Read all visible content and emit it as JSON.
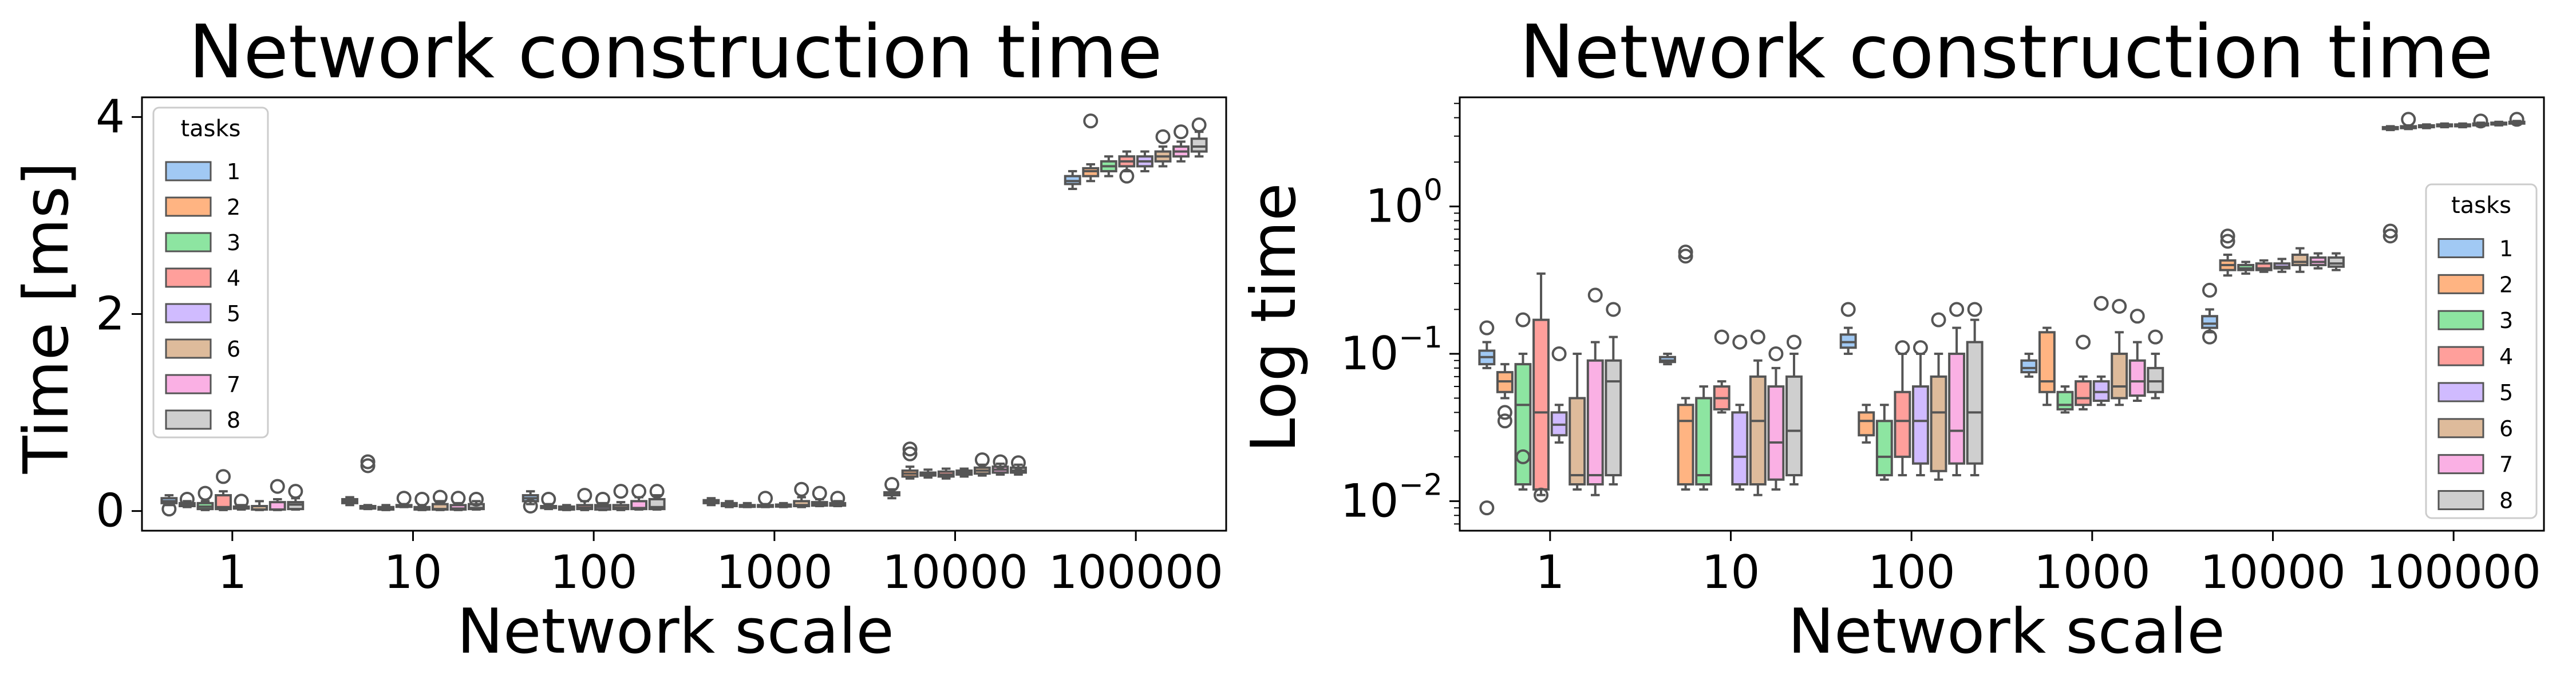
{
  "chart_data": [
    {
      "type": "box",
      "title": "Network construction time",
      "xlabel": "Network scale",
      "ylabel": "Time [ms]",
      "scale": "linear",
      "ylim": [
        -0.2,
        4.2
      ],
      "yticks": [
        0,
        2,
        4
      ],
      "ytick_labels": [
        "0",
        "2",
        "4"
      ],
      "categories": [
        "1",
        "10",
        "100",
        "1000",
        "10000",
        "100000"
      ],
      "legend": {
        "title": "tasks",
        "placement": "upper-left"
      },
      "series": [
        {
          "name": "1",
          "color": "#a1c9f4",
          "boxes": [
            [
              0.06,
              0.08,
              0.1,
              0.13,
              0.16
            ],
            [
              0.06,
              0.08,
              0.1,
              0.12,
              0.14
            ],
            [
              0.07,
              0.1,
              0.13,
              0.16,
              0.2
            ],
            [
              0.06,
              0.08,
              0.09,
              0.11,
              0.13
            ],
            [
              0.13,
              0.16,
              0.17,
              0.19,
              0.22
            ],
            [
              3.27,
              3.32,
              3.35,
              3.4,
              3.45
            ]
          ],
          "outliers": [
            [
              0.02
            ],
            [],
            [
              0.05
            ],
            [],
            [
              0.27
            ],
            []
          ]
        },
        {
          "name": "2",
          "color": "#ffb482",
          "boxes": [
            [
              0.04,
              0.05,
              0.065,
              0.08,
              0.1
            ],
            [
              0.02,
              0.025,
              0.04,
              0.05,
              0.06
            ],
            [
              0.02,
              0.03,
              0.04,
              0.05,
              0.07
            ],
            [
              0.04,
              0.05,
              0.07,
              0.08,
              0.1
            ],
            [
              0.33,
              0.35,
              0.38,
              0.41,
              0.45
            ],
            [
              3.35,
              3.4,
              3.45,
              3.48,
              3.52
            ]
          ],
          "outliers": [
            [
              0.12
            ],
            [
              0.5,
              0.46
            ],
            [
              0.12
            ],
            [],
            [
              0.58,
              0.63
            ],
            [
              3.96
            ]
          ]
        },
        {
          "name": "3",
          "color": "#8de5a1",
          "boxes": [
            [
              0.01,
              0.02,
              0.045,
              0.08,
              0.1
            ],
            [
              0.01,
              0.015,
              0.02,
              0.04,
              0.06
            ],
            [
              0.01,
              0.015,
              0.03,
              0.045,
              0.06
            ],
            [
              0.04,
              0.045,
              0.05,
              0.06,
              0.08
            ],
            [
              0.34,
              0.36,
              0.37,
              0.39,
              0.42
            ],
            [
              3.4,
              3.45,
              3.5,
              3.55,
              3.6
            ]
          ],
          "outliers": [
            [
              0.18
            ],
            [],
            [],
            [],
            [],
            []
          ]
        },
        {
          "name": "4",
          "color": "#ff9f9b",
          "boxes": [
            [
              0.01,
              0.02,
              0.04,
              0.16,
              0.2
            ],
            [
              0.04,
              0.045,
              0.05,
              0.06,
              0.07
            ],
            [
              0.01,
              0.02,
              0.035,
              0.06,
              0.1
            ],
            [
              0.04,
              0.045,
              0.05,
              0.06,
              0.07
            ],
            [
              0.33,
              0.35,
              0.37,
              0.4,
              0.43
            ],
            [
              3.45,
              3.5,
              3.55,
              3.6,
              3.65
            ]
          ],
          "outliers": [
            [
              0.35
            ],
            [
              0.13
            ],
            [
              0.16
            ],
            [
              0.13
            ],
            [],
            [
              3.4
            ]
          ]
        },
        {
          "name": "5",
          "color": "#d0bbff",
          "boxes": [
            [
              0.015,
              0.025,
              0.035,
              0.045,
              0.06
            ],
            [
              0.01,
              0.015,
              0.025,
              0.04,
              0.06
            ],
            [
              0.01,
              0.015,
              0.04,
              0.06,
              0.08
            ],
            [
              0.04,
              0.045,
              0.055,
              0.065,
              0.08
            ],
            [
              0.35,
              0.37,
              0.39,
              0.41,
              0.43
            ],
            [
              3.45,
              3.5,
              3.55,
              3.6,
              3.65
            ]
          ],
          "outliers": [
            [
              0.1
            ],
            [
              0.12
            ],
            [
              0.12
            ],
            [],
            [],
            []
          ]
        },
        {
          "name": "6",
          "color": "#debb9b",
          "boxes": [
            [
              0.01,
              0.015,
              0.015,
              0.05,
              0.1
            ],
            [
              0.01,
              0.015,
              0.02,
              0.07,
              0.1
            ],
            [
              0.01,
              0.02,
              0.035,
              0.06,
              0.09
            ],
            [
              0.04,
              0.05,
              0.06,
              0.1,
              0.14
            ],
            [
              0.36,
              0.38,
              0.41,
              0.44,
              0.47
            ],
            [
              3.5,
              3.55,
              3.6,
              3.65,
              3.7
            ]
          ],
          "outliers": [
            [],
            [
              0.14
            ],
            [
              0.2
            ],
            [
              0.22
            ],
            [
              0.52
            ],
            [
              3.8
            ]
          ]
        },
        {
          "name": "7",
          "color": "#fab0e4",
          "boxes": [
            [
              0.01,
              0.015,
              0.015,
              0.09,
              0.12
            ],
            [
              0.01,
              0.015,
              0.025,
              0.06,
              0.08
            ],
            [
              0.015,
              0.02,
              0.03,
              0.1,
              0.14
            ],
            [
              0.05,
              0.055,
              0.07,
              0.09,
              0.12
            ],
            [
              0.37,
              0.39,
              0.42,
              0.45,
              0.48
            ],
            [
              3.55,
              3.6,
              3.65,
              3.7,
              3.75
            ]
          ],
          "outliers": [
            [
              0.25
            ],
            [
              0.13
            ],
            [
              0.2
            ],
            [
              0.18
            ],
            [
              0.5
            ],
            [
              3.85
            ]
          ]
        },
        {
          "name": "8",
          "color": "#cfcfcf",
          "boxes": [
            [
              0.015,
              0.02,
              0.065,
              0.09,
              0.13
            ],
            [
              0.015,
              0.02,
              0.03,
              0.07,
              0.1
            ],
            [
              0.015,
              0.02,
              0.04,
              0.12,
              0.16
            ],
            [
              0.05,
              0.055,
              0.065,
              0.08,
              0.1
            ],
            [
              0.37,
              0.39,
              0.41,
              0.44,
              0.47
            ],
            [
              3.6,
              3.65,
              3.7,
              3.78,
              3.85
            ]
          ],
          "outliers": [
            [
              0.2
            ],
            [
              0.12
            ],
            [
              0.2
            ],
            [
              0.13
            ],
            [
              0.49
            ],
            [
              3.92
            ]
          ]
        }
      ]
    },
    {
      "type": "box",
      "title": "Network construction time",
      "xlabel": "Network scale",
      "ylabel": "Log time",
      "scale": "log",
      "ylim": [
        0.0063,
        5.5
      ],
      "yticks": [
        0.01,
        0.1,
        1
      ],
      "ytick_labels": [
        [
          "10",
          "−2"
        ],
        [
          "10",
          "−1"
        ],
        [
          "10",
          "0"
        ]
      ],
      "categories": [
        "1",
        "10",
        "100",
        "1000",
        "10000",
        "100000"
      ],
      "legend": {
        "title": "tasks",
        "placement": "right"
      },
      "series": [
        {
          "name": "1",
          "color": "#a1c9f4",
          "boxes": [
            [
              0.08,
              0.085,
              0.095,
              0.105,
              0.12
            ],
            [
              0.085,
              0.088,
              0.09,
              0.095,
              0.1
            ],
            [
              0.1,
              0.11,
              0.12,
              0.135,
              0.15
            ],
            [
              0.07,
              0.075,
              0.08,
              0.09,
              0.1
            ],
            [
              0.14,
              0.15,
              0.16,
              0.18,
              0.2
            ],
            [
              3.3,
              3.35,
              3.4,
              3.45,
              3.5
            ]
          ],
          "outliers": [
            [
              0.15,
              0.009
            ],
            [],
            [
              0.2
            ],
            [],
            [
              0.27,
              0.13
            ],
            [
              0.68,
              0.63
            ]
          ]
        },
        {
          "name": "2",
          "color": "#ffb482",
          "boxes": [
            [
              0.05,
              0.055,
              0.065,
              0.075,
              0.085
            ],
            [
              0.012,
              0.013,
              0.035,
              0.045,
              0.05
            ],
            [
              0.025,
              0.028,
              0.035,
              0.04,
              0.045
            ],
            [
              0.045,
              0.055,
              0.065,
              0.14,
              0.15
            ],
            [
              0.34,
              0.37,
              0.4,
              0.43,
              0.47
            ],
            [
              3.35,
              3.4,
              3.45,
              3.5,
              3.55
            ]
          ],
          "outliers": [
            [
              0.04,
              0.035
            ],
            [
              0.49,
              0.46
            ],
            [],
            [],
            [
              0.63,
              0.58
            ],
            [
              3.9
            ]
          ]
        },
        {
          "name": "3",
          "color": "#8de5a1",
          "boxes": [
            [
              0.012,
              0.013,
              0.045,
              0.085,
              0.1
            ],
            [
              0.012,
              0.013,
              0.015,
              0.05,
              0.06
            ],
            [
              0.014,
              0.015,
              0.02,
              0.035,
              0.045
            ],
            [
              0.04,
              0.042,
              0.045,
              0.055,
              0.06
            ],
            [
              0.35,
              0.37,
              0.38,
              0.4,
              0.42
            ],
            [
              3.4,
              3.45,
              3.5,
              3.55,
              3.6
            ]
          ],
          "outliers": [
            [
              0.17,
              0.02
            ],
            [],
            [],
            [],
            [],
            []
          ]
        },
        {
          "name": "4",
          "color": "#ff9f9b",
          "boxes": [
            [
              0.011,
              0.012,
              0.04,
              0.17,
              0.35
            ],
            [
              0.04,
              0.042,
              0.05,
              0.06,
              0.065
            ],
            [
              0.015,
              0.02,
              0.035,
              0.055,
              0.1
            ],
            [
              0.042,
              0.045,
              0.05,
              0.065,
              0.07
            ],
            [
              0.36,
              0.37,
              0.38,
              0.41,
              0.43
            ],
            [
              3.45,
              3.5,
              3.55,
              3.6,
              3.65
            ]
          ],
          "outliers": [
            [
              0.011
            ],
            [
              0.13
            ],
            [
              0.11
            ],
            [
              0.12
            ],
            [],
            []
          ]
        },
        {
          "name": "5",
          "color": "#d0bbff",
          "boxes": [
            [
              0.025,
              0.028,
              0.033,
              0.04,
              0.045
            ],
            [
              0.012,
              0.013,
              0.02,
              0.04,
              0.045
            ],
            [
              0.015,
              0.018,
              0.035,
              0.06,
              0.1
            ],
            [
              0.045,
              0.048,
              0.055,
              0.065,
              0.07
            ],
            [
              0.36,
              0.38,
              0.39,
              0.41,
              0.44
            ],
            [
              3.45,
              3.5,
              3.55,
              3.6,
              3.65
            ]
          ],
          "outliers": [
            [
              0.1
            ],
            [
              0.12
            ],
            [
              0.11
            ],
            [
              0.22
            ],
            [],
            []
          ]
        },
        {
          "name": "6",
          "color": "#debb9b",
          "boxes": [
            [
              0.012,
              0.013,
              0.015,
              0.05,
              0.1
            ],
            [
              0.011,
              0.013,
              0.035,
              0.07,
              0.09
            ],
            [
              0.014,
              0.016,
              0.04,
              0.07,
              0.1
            ],
            [
              0.045,
              0.05,
              0.06,
              0.1,
              0.14
            ],
            [
              0.36,
              0.4,
              0.42,
              0.47,
              0.52
            ],
            [
              3.5,
              3.55,
              3.6,
              3.65,
              3.7
            ]
          ],
          "outliers": [
            [],
            [
              0.13
            ],
            [
              0.17
            ],
            [
              0.21
            ],
            [],
            [
              3.8
            ]
          ]
        },
        {
          "name": "7",
          "color": "#fab0e4",
          "boxes": [
            [
              0.011,
              0.013,
              0.015,
              0.09,
              0.12
            ],
            [
              0.012,
              0.014,
              0.025,
              0.06,
              0.08
            ],
            [
              0.015,
              0.018,
              0.03,
              0.1,
              0.15
            ],
            [
              0.048,
              0.052,
              0.065,
              0.09,
              0.12
            ],
            [
              0.38,
              0.4,
              0.42,
              0.45,
              0.48
            ],
            [
              3.55,
              3.6,
              3.65,
              3.7,
              3.75
            ]
          ],
          "outliers": [
            [
              0.25
            ],
            [
              0.1
            ],
            [
              0.2
            ],
            [
              0.18
            ],
            [],
            []
          ]
        },
        {
          "name": "8",
          "color": "#cfcfcf",
          "boxes": [
            [
              0.013,
              0.015,
              0.065,
              0.09,
              0.13
            ],
            [
              0.013,
              0.015,
              0.03,
              0.07,
              0.1
            ],
            [
              0.015,
              0.018,
              0.04,
              0.12,
              0.17
            ],
            [
              0.05,
              0.055,
              0.065,
              0.08,
              0.1
            ],
            [
              0.37,
              0.39,
              0.41,
              0.45,
              0.48
            ],
            [
              3.6,
              3.65,
              3.7,
              3.75,
              3.8
            ]
          ],
          "outliers": [
            [
              0.2
            ],
            [
              0.12
            ],
            [
              0.2
            ],
            [
              0.13
            ],
            [],
            [
              3.9
            ]
          ]
        }
      ]
    }
  ]
}
